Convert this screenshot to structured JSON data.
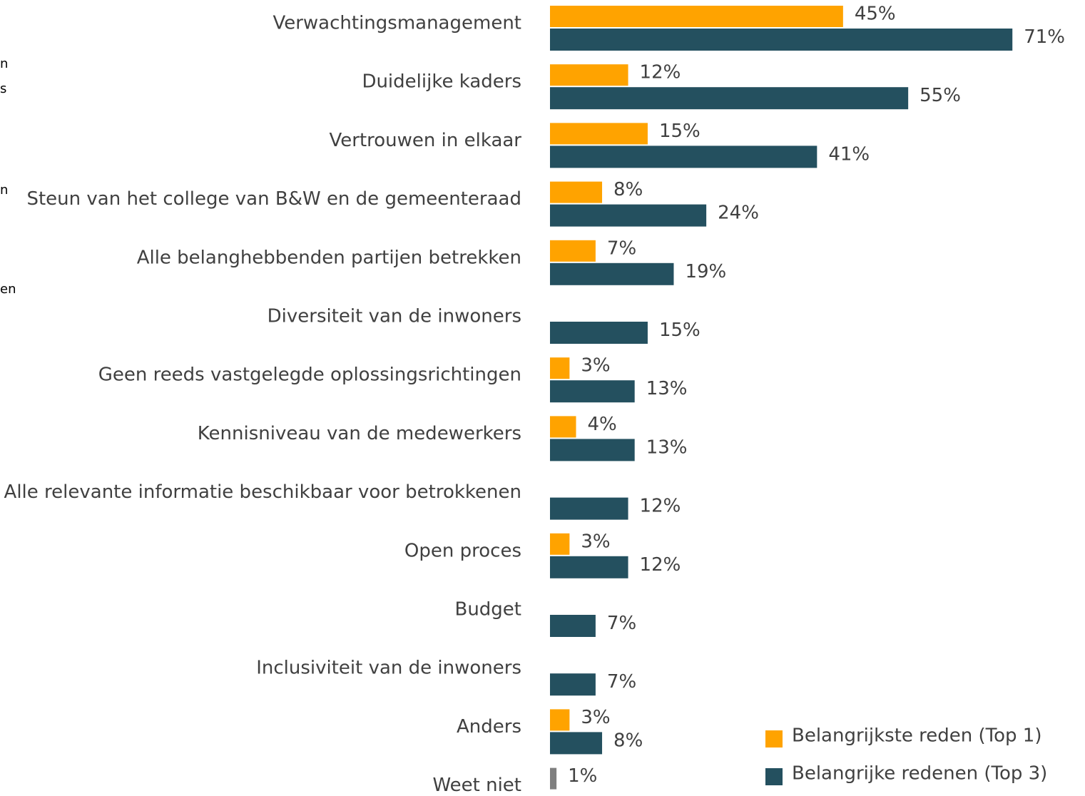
{
  "chart_data": {
    "type": "bar",
    "orientation": "horizontal",
    "categories": [
      "Verwachtingsmanagement",
      "Duidelijke kaders",
      "Vertrouwen in elkaar",
      "Steun van het college van B&W en de gemeenteraad",
      "Alle belanghebbenden partijen betrekken",
      "Diversiteit van de inwoners",
      "Geen reeds vastgelegde oplossingsrichtingen",
      "Kennisniveau van de medewerkers",
      "Alle relevante informatie beschikbaar voor betrokkenen",
      "Open proces",
      "Budget",
      "Inclusiviteit van de inwoners",
      "Anders",
      "Weet niet"
    ],
    "series": [
      {
        "name": "Belangrijkste reden (Top 1)",
        "color": "#ffa300",
        "colors": [
          "#ffa300",
          "#ffa300",
          "#ffa300",
          "#ffa300",
          "#ffa300",
          "#ffa300",
          "#ffa300",
          "#ffa300",
          "#ffa300",
          "#ffa300",
          "#ffa300",
          "#ffa300",
          "#ffa300",
          "#7f7f7f"
        ],
        "values": [
          45,
          12,
          15,
          8,
          7,
          null,
          3,
          4,
          null,
          3,
          null,
          null,
          3,
          1
        ],
        "value_labels": [
          "45%",
          "12%",
          "15%",
          "8%",
          "7%",
          null,
          "3%",
          "4%",
          null,
          "3%",
          null,
          null,
          "3%",
          "1%"
        ]
      },
      {
        "name": "Belangrijke redenen (Top 3)",
        "color": "#24505f",
        "values": [
          71,
          55,
          41,
          24,
          19,
          15,
          13,
          13,
          12,
          12,
          7,
          7,
          8,
          null
        ],
        "value_labels": [
          "71%",
          "55%",
          "41%",
          "24%",
          "19%",
          "15%",
          "13%",
          "13%",
          "12%",
          "12%",
          "7%",
          "7%",
          "8%",
          null
        ]
      }
    ],
    "xlim": [
      0,
      100
    ],
    "legend": "lower right",
    "clipped_text": [
      "n",
      "s",
      "n",
      "en"
    ]
  }
}
